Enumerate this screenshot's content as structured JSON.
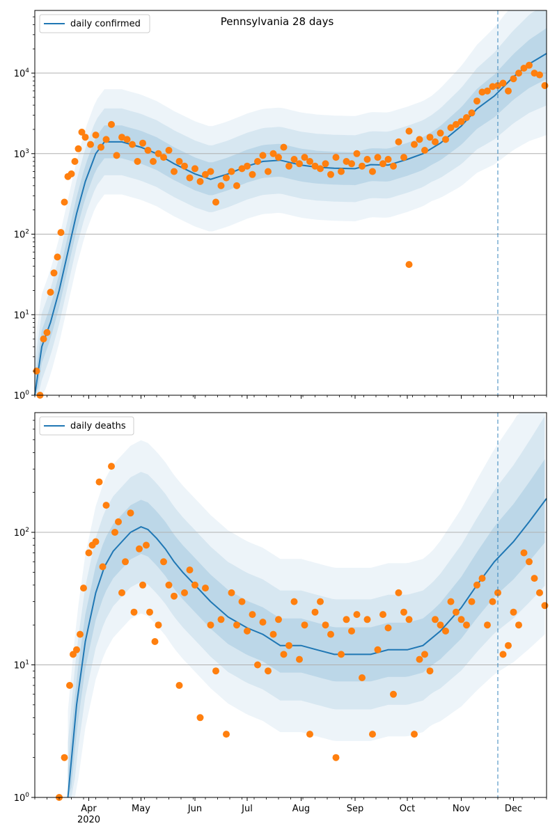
{
  "chart_data": [
    {
      "type": "line",
      "title": "Pennsylvania 28 days",
      "yscale": "log",
      "ylim": [
        1,
        60000
      ],
      "xlim": [
        "2020-03-01",
        "2020-12-20"
      ],
      "y_ticks": [
        {
          "value": 1,
          "base": "10",
          "exp": "0"
        },
        {
          "value": 10,
          "base": "10",
          "exp": "1"
        },
        {
          "value": 100,
          "base": "10",
          "exp": "2"
        },
        {
          "value": 1000,
          "base": "10",
          "exp": "3"
        },
        {
          "value": 10000,
          "base": "10",
          "exp": "4"
        }
      ],
      "grid": "horizontal major",
      "legend": {
        "position": "top-left",
        "label": "daily confirmed"
      },
      "vline": {
        "date": "2020-11-22",
        "style": "dashed"
      },
      "colors": {
        "line": "#1f77b4",
        "points": "#ff7f0e",
        "band": "#1f77b4"
      },
      "series": [
        {
          "name": "daily confirmed",
          "kind": "line",
          "x": [
            "2020-03-01",
            "2020-03-05",
            "2020-03-10",
            "2020-03-15",
            "2020-03-20",
            "2020-03-25",
            "2020-03-30",
            "2020-04-05",
            "2020-04-10",
            "2020-04-20",
            "2020-05-01",
            "2020-05-10",
            "2020-05-20",
            "2020-06-01",
            "2020-06-10",
            "2020-06-20",
            "2020-07-01",
            "2020-07-10",
            "2020-07-20",
            "2020-08-01",
            "2020-08-10",
            "2020-08-20",
            "2020-09-01",
            "2020-09-10",
            "2020-09-20",
            "2020-10-01",
            "2020-10-10",
            "2020-10-20",
            "2020-11-01",
            "2020-11-10",
            "2020-11-20",
            "2020-12-01",
            "2020-12-10",
            "2020-12-20"
          ],
          "y": [
            1,
            4,
            8,
            20,
            60,
            180,
            450,
            1000,
            1400,
            1400,
            1200,
            1000,
            750,
            560,
            480,
            560,
            700,
            800,
            830,
            720,
            680,
            660,
            650,
            730,
            720,
            850,
            1000,
            1350,
            2200,
            3600,
            5200,
            9000,
            13000,
            17500
          ]
        },
        {
          "name": "daily confirmed (reported)",
          "kind": "points",
          "x": [
            "2020-03-02",
            "2020-03-04",
            "2020-03-06",
            "2020-03-08",
            "2020-03-10",
            "2020-03-12",
            "2020-03-14",
            "2020-03-16",
            "2020-03-18",
            "2020-03-20",
            "2020-03-22",
            "2020-03-24",
            "2020-03-26",
            "2020-03-28",
            "2020-03-30",
            "2020-04-02",
            "2020-04-05",
            "2020-04-08",
            "2020-04-11",
            "2020-04-14",
            "2020-04-17",
            "2020-04-20",
            "2020-04-23",
            "2020-04-26",
            "2020-04-29",
            "2020-05-02",
            "2020-05-05",
            "2020-05-08",
            "2020-05-11",
            "2020-05-14",
            "2020-05-17",
            "2020-05-20",
            "2020-05-23",
            "2020-05-26",
            "2020-05-29",
            "2020-06-01",
            "2020-06-04",
            "2020-06-07",
            "2020-06-10",
            "2020-06-13",
            "2020-06-16",
            "2020-06-19",
            "2020-06-22",
            "2020-06-25",
            "2020-06-28",
            "2020-07-01",
            "2020-07-04",
            "2020-07-07",
            "2020-07-10",
            "2020-07-13",
            "2020-07-16",
            "2020-07-19",
            "2020-07-22",
            "2020-07-25",
            "2020-07-28",
            "2020-07-31",
            "2020-08-03",
            "2020-08-06",
            "2020-08-09",
            "2020-08-12",
            "2020-08-15",
            "2020-08-18",
            "2020-08-21",
            "2020-08-24",
            "2020-08-27",
            "2020-08-30",
            "2020-09-02",
            "2020-09-05",
            "2020-09-08",
            "2020-09-11",
            "2020-09-14",
            "2020-09-17",
            "2020-09-20",
            "2020-09-23",
            "2020-09-26",
            "2020-09-29",
            "2020-10-02",
            "2020-10-05",
            "2020-10-08",
            "2020-10-11",
            "2020-10-14",
            "2020-10-17",
            "2020-10-20",
            "2020-10-23",
            "2020-10-26",
            "2020-10-29",
            "2020-11-01",
            "2020-11-04",
            "2020-11-07",
            "2020-11-10",
            "2020-11-13",
            "2020-11-16",
            "2020-11-19",
            "2020-11-22",
            "2020-11-25",
            "2020-11-28",
            "2020-12-01",
            "2020-12-04",
            "2020-12-07",
            "2020-12-10",
            "2020-12-13",
            "2020-12-16",
            "2020-12-19"
          ],
          "y": [
            2,
            1,
            5,
            6,
            19,
            33,
            52,
            105,
            250,
            520,
            560,
            800,
            1150,
            1850,
            1600,
            1300,
            1700,
            1200,
            1500,
            2300,
            950,
            1600,
            1500,
            1300,
            800,
            1350,
            1100,
            800,
            1000,
            900,
            1100,
            600,
            800,
            700,
            500,
            650,
            450,
            550,
            600,
            250,
            400,
            500,
            600,
            400,
            650,
            700,
            550,
            800,
            950,
            600,
            1000,
            900,
            1200,
            700,
            850,
            750,
            900,
            800,
            700,
            650,
            750,
            550,
            900,
            600,
            800,
            750,
            1000,
            700,
            850,
            600,
            900,
            750,
            850,
            700,
            1400,
            900,
            1900,
            1300,
            1500,
            1100,
            1600,
            1400,
            1800,
            1500,
            2100,
            2300,
            2500,
            2800,
            3200,
            4500,
            5800,
            6000,
            6800,
            7000,
            7500,
            6000,
            8500,
            10000,
            11500,
            12500,
            10000,
            9500,
            7000
          ]
        },
        {
          "name": "outlier",
          "kind": "points",
          "x": [
            "2020-10-02"
          ],
          "y": [
            42
          ]
        }
      ]
    },
    {
      "type": "line",
      "title": "",
      "yscale": "log",
      "ylim": [
        1,
        800
      ],
      "xlim": [
        "2020-03-01",
        "2020-12-20"
      ],
      "y_ticks": [
        {
          "value": 1,
          "base": "10",
          "exp": "0"
        },
        {
          "value": 10,
          "base": "10",
          "exp": "1"
        },
        {
          "value": 100,
          "base": "10",
          "exp": "2"
        }
      ],
      "grid": "horizontal major",
      "legend": {
        "position": "top-left",
        "label": "daily deaths"
      },
      "vline": {
        "date": "2020-11-22",
        "style": "dashed"
      },
      "colors": {
        "line": "#1f77b4",
        "points": "#ff7f0e",
        "band": "#1f77b4"
      },
      "x_ticks": [
        {
          "date": "2020-04-01",
          "label": "Apr",
          "sub": "2020"
        },
        {
          "date": "2020-05-01",
          "label": "May"
        },
        {
          "date": "2020-06-01",
          "label": "Jun"
        },
        {
          "date": "2020-07-01",
          "label": "Jul"
        },
        {
          "date": "2020-08-01",
          "label": "Aug"
        },
        {
          "date": "2020-09-01",
          "label": "Sep"
        },
        {
          "date": "2020-10-01",
          "label": "Oct"
        },
        {
          "date": "2020-11-01",
          "label": "Nov"
        },
        {
          "date": "2020-12-01",
          "label": "Dec"
        }
      ],
      "series": [
        {
          "name": "daily deaths",
          "kind": "line",
          "x": [
            "2020-03-20",
            "2020-03-25",
            "2020-03-30",
            "2020-04-05",
            "2020-04-10",
            "2020-04-15",
            "2020-04-20",
            "2020-04-25",
            "2020-05-01",
            "2020-05-05",
            "2020-05-10",
            "2020-05-15",
            "2020-05-20",
            "2020-05-25",
            "2020-06-01",
            "2020-06-10",
            "2020-06-20",
            "2020-07-01",
            "2020-07-10",
            "2020-07-20",
            "2020-08-01",
            "2020-08-10",
            "2020-08-20",
            "2020-09-01",
            "2020-09-10",
            "2020-09-20",
            "2020-10-01",
            "2020-10-10",
            "2020-10-20",
            "2020-11-01",
            "2020-11-10",
            "2020-11-20",
            "2020-12-01",
            "2020-12-10",
            "2020-12-20"
          ],
          "y": [
            1,
            5,
            15,
            35,
            55,
            72,
            85,
            100,
            110,
            105,
            90,
            75,
            60,
            50,
            40,
            30,
            23,
            19,
            17,
            14,
            14,
            13,
            12,
            12,
            12,
            13,
            13,
            14,
            18,
            27,
            40,
            60,
            85,
            120,
            180
          ]
        },
        {
          "name": "daily deaths (reported)",
          "kind": "points",
          "x": [
            "2020-03-15",
            "2020-03-18",
            "2020-03-21",
            "2020-03-23",
            "2020-03-25",
            "2020-03-27",
            "2020-03-29",
            "2020-04-01",
            "2020-04-03",
            "2020-04-05",
            "2020-04-07",
            "2020-04-09",
            "2020-04-11",
            "2020-04-14",
            "2020-04-16",
            "2020-04-18",
            "2020-04-20",
            "2020-04-22",
            "2020-04-25",
            "2020-04-27",
            "2020-04-30",
            "2020-05-02",
            "2020-05-04",
            "2020-05-06",
            "2020-05-09",
            "2020-05-11",
            "2020-05-14",
            "2020-05-17",
            "2020-05-20",
            "2020-05-23",
            "2020-05-26",
            "2020-05-29",
            "2020-06-01",
            "2020-06-04",
            "2020-06-07",
            "2020-06-10",
            "2020-06-13",
            "2020-06-16",
            "2020-06-19",
            "2020-06-22",
            "2020-06-25",
            "2020-06-28",
            "2020-07-01",
            "2020-07-04",
            "2020-07-07",
            "2020-07-10",
            "2020-07-13",
            "2020-07-16",
            "2020-07-19",
            "2020-07-22",
            "2020-07-25",
            "2020-07-28",
            "2020-07-31",
            "2020-08-03",
            "2020-08-06",
            "2020-08-09",
            "2020-08-12",
            "2020-08-15",
            "2020-08-18",
            "2020-08-21",
            "2020-08-24",
            "2020-08-27",
            "2020-08-30",
            "2020-09-02",
            "2020-09-05",
            "2020-09-08",
            "2020-09-11",
            "2020-09-14",
            "2020-09-17",
            "2020-09-20",
            "2020-09-23",
            "2020-09-26",
            "2020-09-29",
            "2020-10-02",
            "2020-10-05",
            "2020-10-08",
            "2020-10-11",
            "2020-10-14",
            "2020-10-17",
            "2020-10-20",
            "2020-10-23",
            "2020-10-26",
            "2020-10-29",
            "2020-11-01",
            "2020-11-04",
            "2020-11-07",
            "2020-11-10",
            "2020-11-13",
            "2020-11-16",
            "2020-11-19",
            "2020-11-22",
            "2020-11-25",
            "2020-11-28",
            "2020-12-01",
            "2020-12-04",
            "2020-12-07",
            "2020-12-10",
            "2020-12-13",
            "2020-12-16",
            "2020-12-19"
          ],
          "y": [
            1,
            2,
            7,
            12,
            13,
            17,
            38,
            70,
            80,
            85,
            240,
            55,
            160,
            315,
            100,
            120,
            35,
            60,
            140,
            25,
            75,
            40,
            80,
            25,
            15,
            20,
            60,
            40,
            33,
            7,
            35,
            52,
            40,
            4,
            38,
            20,
            9,
            22,
            3,
            35,
            20,
            30,
            18,
            24,
            10,
            21,
            9,
            17,
            22,
            12,
            14,
            30,
            11,
            20,
            3,
            25,
            30,
            20,
            17,
            2,
            12,
            22,
            18,
            24,
            8,
            22,
            3,
            13,
            24,
            19,
            6,
            35,
            25,
            22,
            3,
            11,
            12,
            9,
            22,
            20,
            18,
            30,
            25,
            22,
            20,
            30,
            40,
            45,
            20,
            30,
            35,
            12,
            14,
            25,
            20,
            70,
            60,
            45,
            35,
            28
          ]
        }
      ]
    }
  ]
}
